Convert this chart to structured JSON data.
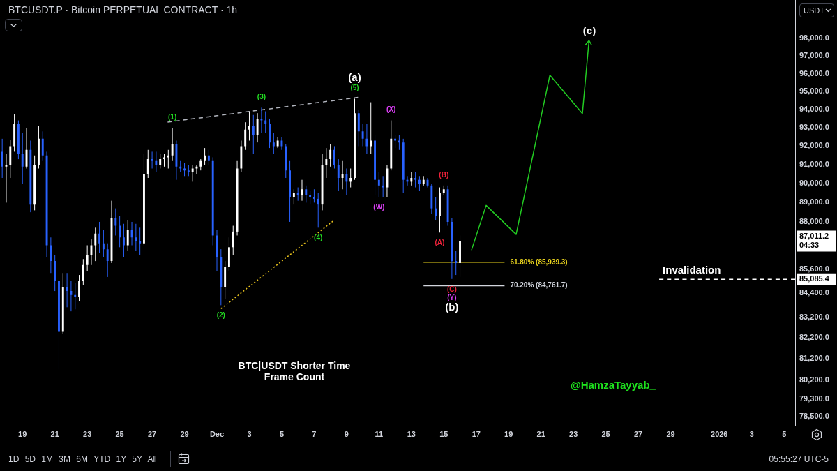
{
  "chart_data": {
    "type": "candlestick",
    "title": "BTCUSDT.P · Bitcoin PERPETUAL CONTRACT · 1h",
    "subtitle": "BTC|USDT Shorter Time Frame Count",
    "x": [
      "2025-11-17T18:00",
      "2025-11-18T00:00",
      "2025-11-18T06:00",
      "2025-11-18T12:00",
      "2025-11-18T18:00",
      "2025-11-19T00:00",
      "2025-11-19T06:00",
      "2025-11-19T12:00",
      "2025-11-19T18:00",
      "2025-11-20T00:00",
      "2025-11-20T06:00",
      "2025-11-20T12:00",
      "2025-11-20T18:00",
      "2025-11-21T00:00",
      "2025-11-21T06:00",
      "2025-11-21T12:00",
      "2025-11-21T18:00",
      "2025-11-22T00:00",
      "2025-11-22T06:00",
      "2025-11-22T12:00",
      "2025-11-22T18:00",
      "2025-11-23T00:00",
      "2025-11-23T06:00",
      "2025-11-23T12:00",
      "2025-11-23T18:00",
      "2025-11-24T00:00",
      "2025-11-24T06:00",
      "2025-11-24T12:00",
      "2025-11-24T18:00",
      "2025-11-25T00:00",
      "2025-11-25T06:00",
      "2025-11-25T12:00",
      "2025-11-25T18:00",
      "2025-11-26T00:00",
      "2025-11-26T06:00",
      "2025-11-26T12:00",
      "2025-11-26T18:00",
      "2025-11-27T00:00",
      "2025-11-27T06:00",
      "2025-11-27T12:00",
      "2025-11-27T18:00",
      "2025-11-28T00:00",
      "2025-11-28T06:00",
      "2025-11-28T12:00",
      "2025-11-28T18:00",
      "2025-11-29T00:00",
      "2025-11-29T06:00",
      "2025-11-29T12:00",
      "2025-11-29T18:00",
      "2025-11-30T00:00",
      "2025-11-30T06:00",
      "2025-11-30T12:00",
      "2025-11-30T18:00",
      "2025-12-01T00:00",
      "2025-12-01T06:00",
      "2025-12-01T12:00",
      "2025-12-01T18:00",
      "2025-12-02T00:00",
      "2025-12-02T06:00",
      "2025-12-02T12:00",
      "2025-12-02T18:00",
      "2025-12-03T00:00",
      "2025-12-03T06:00",
      "2025-12-03T12:00",
      "2025-12-03T18:00",
      "2025-12-04T00:00",
      "2025-12-04T06:00",
      "2025-12-04T12:00",
      "2025-12-04T18:00",
      "2025-12-05T00:00",
      "2025-12-05T06:00",
      "2025-12-05T12:00",
      "2025-12-05T18:00",
      "2025-12-06T00:00",
      "2025-12-06T06:00",
      "2025-12-06T12:00",
      "2025-12-06T18:00",
      "2025-12-07T00:00",
      "2025-12-07T06:00",
      "2025-12-07T12:00",
      "2025-12-07T18:00",
      "2025-12-08T00:00",
      "2025-12-08T06:00",
      "2025-12-08T12:00",
      "2025-12-08T18:00",
      "2025-12-09T00:00",
      "2025-12-09T06:00",
      "2025-12-09T12:00",
      "2025-12-09T18:00",
      "2025-12-10T00:00",
      "2025-12-10T06:00",
      "2025-12-10T12:00",
      "2025-12-10T18:00",
      "2025-12-11T00:00",
      "2025-12-11T06:00",
      "2025-12-11T12:00",
      "2025-12-11T18:00",
      "2025-12-12T00:00",
      "2025-12-12T06:00",
      "2025-12-12T12:00",
      "2025-12-12T18:00",
      "2025-12-13T00:00",
      "2025-12-13T06:00",
      "2025-12-13T12:00",
      "2025-12-13T18:00",
      "2025-12-14T00:00",
      "2025-12-14T06:00",
      "2025-12-14T12:00",
      "2025-12-14T18:00",
      "2025-12-15T00:00",
      "2025-12-15T06:00",
      "2025-12-15T12:00",
      "2025-12-15T18:00",
      "2025-12-16T00:00"
    ],
    "ohlc": [
      [
        91700,
        92400,
        90300,
        90900
      ],
      [
        90900,
        91600,
        89000,
        91000
      ],
      [
        91000,
        92350,
        90300,
        92000
      ],
      [
        92000,
        93750,
        91700,
        93200
      ],
      [
        93200,
        93400,
        91300,
        91600
      ],
      [
        91600,
        92700,
        90000,
        90900
      ],
      [
        90900,
        93000,
        90800,
        91800
      ],
      [
        91800,
        92300,
        88500,
        88900
      ],
      [
        88900,
        91500,
        88600,
        91000
      ],
      [
        91000,
        93100,
        90800,
        92400
      ],
      [
        92400,
        92800,
        91200,
        91500
      ],
      [
        91500,
        91700,
        86200,
        86800
      ],
      [
        86800,
        87200,
        85400,
        86000
      ],
      [
        86000,
        86300,
        84500,
        85000
      ],
      [
        85000,
        85300,
        80700,
        82500
      ],
      [
        82500,
        85400,
        82400,
        84700
      ],
      [
        84700,
        85400,
        83700,
        84500
      ],
      [
        84500,
        85000,
        83500,
        84300
      ],
      [
        84300,
        84900,
        83600,
        84200
      ],
      [
        84200,
        85300,
        84000,
        85000
      ],
      [
        85000,
        86100,
        84800,
        85800
      ],
      [
        85800,
        86800,
        85500,
        86300
      ],
      [
        86300,
        87100,
        85800,
        86800
      ],
      [
        86800,
        87700,
        86000,
        87400
      ],
      [
        87400,
        88000,
        86400,
        86900
      ],
      [
        86900,
        87600,
        86200,
        86600
      ],
      [
        86600,
        86900,
        85200,
        86000
      ],
      [
        86000,
        89100,
        85900,
        88200
      ],
      [
        88200,
        88700,
        87300,
        87800
      ],
      [
        87800,
        88300,
        86700,
        87200
      ],
      [
        87200,
        87900,
        86200,
        86800
      ],
      [
        86800,
        88100,
        86500,
        87600
      ],
      [
        87600,
        88000,
        86800,
        87200
      ],
      [
        87200,
        87900,
        86500,
        87000
      ],
      [
        87000,
        87700,
        86300,
        86900
      ],
      [
        86900,
        91600,
        86800,
        90500
      ],
      [
        90500,
        91800,
        90300,
        91300
      ],
      [
        91300,
        91700,
        90800,
        91200
      ],
      [
        91200,
        91700,
        90600,
        91000
      ],
      [
        91000,
        91600,
        90800,
        91300
      ],
      [
        91300,
        91600,
        90900,
        91400
      ],
      [
        91400,
        91800,
        90800,
        91500
      ],
      [
        91500,
        93000,
        91200,
        92100
      ],
      [
        92100,
        92300,
        90200,
        90900
      ],
      [
        90900,
        91200,
        90600,
        90800
      ],
      [
        90800,
        91100,
        90400,
        90700
      ],
      [
        90700,
        91000,
        90400,
        90600
      ],
      [
        90600,
        91000,
        90100,
        90800
      ],
      [
        90800,
        91000,
        90500,
        90900
      ],
      [
        90900,
        91300,
        90700,
        91200
      ],
      [
        91200,
        91900,
        91000,
        91500
      ],
      [
        91500,
        91800,
        91000,
        91200
      ],
      [
        91200,
        91400,
        86800,
        87300
      ],
      [
        87300,
        87600,
        85500,
        86200
      ],
      [
        86200,
        86600,
        83800,
        84700
      ],
      [
        84700,
        86000,
        84100,
        85700
      ],
      [
        85700,
        87200,
        85500,
        86700
      ],
      [
        86700,
        87800,
        86300,
        87500
      ],
      [
        87500,
        91200,
        87300,
        90800
      ],
      [
        90800,
        92300,
        90600,
        92000
      ],
      [
        92000,
        93300,
        91800,
        92900
      ],
      [
        92900,
        93900,
        92300,
        93100
      ],
      [
        93100,
        93700,
        91600,
        92600
      ],
      [
        92600,
        93800,
        92200,
        93500
      ],
      [
        93500,
        94100,
        92700,
        93400
      ],
      [
        93400,
        93900,
        92700,
        93200
      ],
      [
        93200,
        93500,
        91900,
        92200
      ],
      [
        92200,
        92700,
        91600,
        92000
      ],
      [
        92000,
        92500,
        91900,
        92300
      ],
      [
        92300,
        92500,
        91800,
        92000
      ],
      [
        92000,
        92100,
        90300,
        90700
      ],
      [
        90700,
        91200,
        88000,
        89300
      ],
      [
        89300,
        89700,
        88900,
        89500
      ],
      [
        89500,
        89800,
        89100,
        89400
      ],
      [
        89400,
        90200,
        89100,
        89700
      ],
      [
        89700,
        89900,
        89000,
        89400
      ],
      [
        89400,
        89600,
        88900,
        89300
      ],
      [
        89300,
        89700,
        89000,
        89200
      ],
      [
        89200,
        89500,
        87700,
        88900
      ],
      [
        88900,
        91600,
        88600,
        91000
      ],
      [
        91000,
        91900,
        90300,
        91300
      ],
      [
        91300,
        92100,
        90900,
        91800
      ],
      [
        91800,
        92000,
        90800,
        91000
      ],
      [
        91000,
        91300,
        89600,
        90300
      ],
      [
        90300,
        91200,
        89700,
        90500
      ],
      [
        90500,
        90800,
        89400,
        90100
      ],
      [
        90100,
        90800,
        89800,
        90300
      ],
      [
        90300,
        94600,
        90200,
        93800
      ],
      [
        93800,
        94000,
        92000,
        92800
      ],
      [
        92800,
        93200,
        92000,
        92400
      ],
      [
        92400,
        93200,
        91600,
        92000
      ],
      [
        92000,
        94400,
        91600,
        92300
      ],
      [
        92300,
        92600,
        89400,
        90200
      ],
      [
        90200,
        90600,
        89300,
        89900
      ],
      [
        89900,
        90400,
        89300,
        89800
      ],
      [
        89800,
        91000,
        89300,
        90800
      ],
      [
        90800,
        93400,
        90700,
        92400
      ],
      [
        92400,
        92600,
        91900,
        92300
      ],
      [
        92300,
        92600,
        91800,
        92200
      ],
      [
        92200,
        92400,
        89500,
        90200
      ],
      [
        90200,
        90400,
        89900,
        90100
      ],
      [
        90100,
        90600,
        89900,
        90300
      ],
      [
        90300,
        90600,
        89800,
        90200
      ],
      [
        90200,
        90400,
        89600,
        90000
      ],
      [
        90000,
        90400,
        89900,
        90200
      ],
      [
        90200,
        90300,
        89800,
        89900
      ],
      [
        89900,
        90000,
        88400,
        88700
      ],
      [
        88700,
        89300,
        88100,
        88300
      ],
      [
        88300,
        89800,
        87450,
        89500
      ],
      [
        89500,
        89900,
        89400,
        89700
      ],
      [
        89700,
        89900,
        87800,
        88000
      ],
      [
        88000,
        88200,
        85100,
        86000
      ],
      [
        86000,
        86500,
        85300,
        85900
      ],
      [
        85900,
        87300,
        85200,
        87011.2
      ]
    ],
    "colors": [
      "#2962ff",
      "#ffffff",
      "#ffffff",
      "#ffffff",
      "#2962ff",
      "#2962ff",
      "#ffffff",
      "#2962ff",
      "#ffffff",
      "#ffffff",
      "#2962ff",
      "#2962ff",
      "#2962ff",
      "#2962ff",
      "#2962ff",
      "#ffffff",
      "#2962ff",
      "#2962ff",
      "#2962ff",
      "#ffffff",
      "#ffffff",
      "#ffffff",
      "#ffffff",
      "#ffffff",
      "#2962ff",
      "#2962ff",
      "#2962ff",
      "#ffffff",
      "#2962ff",
      "#2962ff",
      "#2962ff",
      "#ffffff",
      "#2962ff",
      "#2962ff",
      "#2962ff",
      "#ffffff",
      "#ffffff",
      "#2962ff",
      "#2962ff",
      "#ffffff",
      "#ffffff",
      "#ffffff",
      "#ffffff",
      "#2962ff",
      "#2962ff",
      "#2962ff",
      "#2962ff",
      "#ffffff",
      "#ffffff",
      "#ffffff",
      "#ffffff",
      "#2962ff",
      "#2962ff",
      "#2962ff",
      "#2962ff",
      "#ffffff",
      "#ffffff",
      "#ffffff",
      "#ffffff",
      "#ffffff",
      "#ffffff",
      "#ffffff",
      "#2962ff",
      "#ffffff",
      "#2962ff",
      "#2962ff",
      "#2962ff",
      "#2962ff",
      "#ffffff",
      "#2962ff",
      "#2962ff",
      "#2962ff",
      "#ffffff",
      "#2962ff",
      "#ffffff",
      "#2962ff",
      "#2962ff",
      "#2962ff",
      "#2962ff",
      "#ffffff",
      "#ffffff",
      "#ffffff",
      "#2962ff",
      "#2962ff",
      "#ffffff",
      "#2962ff",
      "#ffffff",
      "#ffffff",
      "#2962ff",
      "#2962ff",
      "#2962ff",
      "#ffffff",
      "#2962ff",
      "#2962ff",
      "#2962ff",
      "#ffffff",
      "#ffffff",
      "#2962ff",
      "#2962ff",
      "#2962ff",
      "#2962ff",
      "#ffffff",
      "#2962ff",
      "#2962ff",
      "#ffffff",
      "#2962ff",
      "#2962ff",
      "#2962ff",
      "#ffffff",
      "#ffffff",
      "#2962ff",
      "#2962ff",
      "#2962ff",
      "#ffffff"
    ],
    "series": [
      {
        "type": "line",
        "color": "#b2b5be",
        "line_style": "dashed",
        "x": [
          "2025-11-27T23:00",
          "2025-12-09T17:00"
        ],
        "values": [
          93310,
          94670
        ]
      },
      {
        "type": "line",
        "color": "#e8c21d",
        "line_style": "dotted",
        "x": [
          "2025-12-01T06:00",
          "2025-12-08T03:30"
        ],
        "values": [
          83630,
          88030
        ]
      },
      {
        "type": "line",
        "name": "61.80% (85,939.3)",
        "color": "#e8d21d",
        "line_style": "solid",
        "x": [
          "2025-12-13T18:00",
          "2025-12-18T18:00"
        ],
        "values": [
          85939.3,
          85939.3
        ]
      },
      {
        "type": "line",
        "name": "70.20% (84,761.7)",
        "color": "#d1d4dc",
        "line_style": "solid",
        "x": [
          "2025-12-13T18:00",
          "2025-12-18T18:00"
        ],
        "values": [
          84761.7,
          84761.7
        ]
      },
      {
        "type": "line",
        "name": "Invalidation",
        "color": "#ffffff",
        "line_style": "dashed",
        "x": [
          "2025-12-28T07:00",
          "2026-01-05T16:20"
        ],
        "values": [
          85085.4,
          85085.4
        ]
      }
    ],
    "annotations": [
      {
        "text": "(1)",
        "x": "2025-11-28T06:00",
        "y": 93000
      },
      {
        "text": "(2)",
        "x": "2025-12-01T06:00",
        "y": 83800
      },
      {
        "text": "(3)",
        "x": "2025-12-03T18:00",
        "y": 94100
      },
      {
        "text": "(4)",
        "x": "2025-12-07T06:00",
        "y": 87700
      },
      {
        "text": "(5)",
        "x": "2025-12-09T12:00",
        "y": 94600
      },
      {
        "text": "(a)",
        "x": "2025-12-09T12:00",
        "y": 94600
      },
      {
        "text": "(W)",
        "x": "2025-12-11T00:00",
        "y": 89300
      },
      {
        "text": "(X)",
        "x": "2025-12-11T18:00",
        "y": 93400
      },
      {
        "text": "(A)",
        "x": "2025-12-14T18:00",
        "y": 87450
      },
      {
        "text": "(B)",
        "x": "2025-12-15T00:00",
        "y": 89900
      },
      {
        "text": "(C)",
        "x": "2025-12-15T12:00",
        "y": 85100
      },
      {
        "text": "(Y)",
        "x": "2025-12-15T12:00",
        "y": 85100
      },
      {
        "text": "(b)",
        "x": "2025-12-15T12:00",
        "y": 85100
      },
      "USDT",
      "1D 5D 1M 3M 6M YTD 1Y 5Y All",
      "05:55:27 UTC-5",
      "@HamzaTayyab_",
      "(c)"
    ],
    "xlim": [
      "2025-11-17T15:30",
      "2026-01-05T16:20"
    ],
    "xticks": [
      {
        "value": "2025-11-19",
        "label": "19"
      },
      {
        "value": "2025-11-21",
        "label": "21"
      },
      {
        "value": "2025-11-23",
        "label": "23"
      },
      {
        "value": "2025-11-25",
        "label": "25"
      },
      {
        "value": "2025-11-27",
        "label": "27"
      },
      {
        "value": "2025-11-29",
        "label": "29"
      },
      {
        "value": "2025-12-01",
        "label": "Dec"
      },
      {
        "value": "2025-12-03",
        "label": "3"
      },
      {
        "value": "2025-12-05",
        "label": "5"
      },
      {
        "value": "2025-12-07",
        "label": "7"
      },
      {
        "value": "2025-12-09",
        "label": "9"
      },
      {
        "value": "2025-12-11",
        "label": "11"
      },
      {
        "value": "2025-12-13",
        "label": "13"
      },
      {
        "value": "2025-12-15",
        "label": "15"
      },
      {
        "value": "2025-12-17",
        "label": "17"
      },
      {
        "value": "2025-12-19",
        "label": "19"
      },
      {
        "value": "2025-12-21",
        "label": "21"
      },
      {
        "value": "2025-12-23",
        "label": "23"
      },
      {
        "value": "2025-12-25",
        "label": "25"
      },
      {
        "value": "2025-12-27",
        "label": "27"
      },
      {
        "value": "2025-12-29",
        "label": "29"
      },
      {
        "value": "2026-01-01",
        "label": "2026"
      },
      {
        "value": "2026-01-03",
        "label": "3"
      },
      {
        "value": "2026-01-05",
        "label": "5"
      }
    ],
    "ylim": [
      78080,
      100210
    ],
    "yticks": [
      {
        "value": 78500,
        "label": "78,500.0"
      },
      {
        "value": 79300,
        "label": "79,300.0"
      },
      {
        "value": 80200,
        "label": "80,200.0"
      },
      {
        "value": 81200,
        "label": "81,200.0"
      },
      {
        "value": 82200,
        "label": "82,200.0"
      },
      {
        "value": 83200,
        "label": "83,200.0"
      },
      {
        "value": 84400,
        "label": "84,400.0"
      },
      {
        "value": 85085.4,
        "label": "85,085.4"
      },
      {
        "value": 85600,
        "label": "85,600.0"
      },
      {
        "value": 87011.2,
        "label": "87,011.2\n04:33"
      },
      {
        "value": 88000,
        "label": "88,000.0"
      },
      {
        "value": 89000,
        "label": "89,000.0"
      },
      {
        "value": 90000,
        "label": "90,000.0"
      },
      {
        "value": 91000,
        "label": "91,000.0"
      },
      {
        "value": 92000,
        "label": "92,000.0"
      },
      {
        "value": 93000,
        "label": "93,000.0"
      },
      {
        "value": 94000,
        "label": "94,000.0"
      },
      {
        "value": 95000,
        "label": "95,000.0"
      },
      {
        "value": 96000,
        "label": "96,000.0"
      },
      {
        "value": 97000,
        "label": "97,000.0"
      },
      {
        "value": 98000,
        "label": "98,000.0"
      }
    ],
    "log": "y",
    "grid": false,
    "legend": false,
    "marker": "none"
  }
}
